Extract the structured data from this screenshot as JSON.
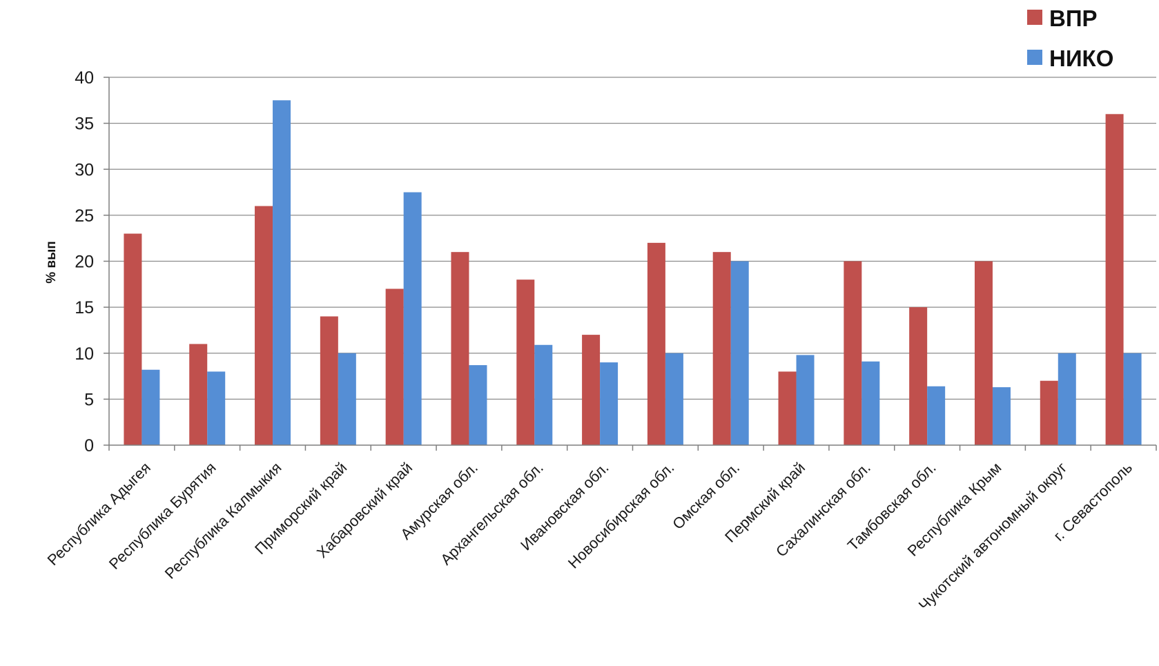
{
  "chart_data": {
    "type": "bar",
    "ylabel": "% вып",
    "xlabel": "",
    "ylim": [
      0,
      40
    ],
    "yticks": [
      0,
      5,
      10,
      15,
      20,
      25,
      30,
      35,
      40
    ],
    "grid": true,
    "legend_position": "top-right",
    "categories": [
      "Республика Адыгея",
      "Республика Бурятия",
      "Республика Калмыкия",
      "Приморский край",
      "Хабаровский край",
      "Амурская обл.",
      "Архангельская обл.",
      "Ивановская обл.",
      "Новосибирская обл.",
      "Омская обл.",
      "Пермский край",
      "Сахалинская обл.",
      "Тамбовская обл.",
      "Республика Крым",
      "Чукотский автономный округ",
      "г. Севастополь"
    ],
    "series": [
      {
        "name": "ВПР",
        "color": "#c0504d",
        "values": [
          23,
          11,
          26,
          14,
          17,
          21,
          18,
          12,
          22,
          21,
          8,
          20,
          15,
          20,
          7,
          36
        ]
      },
      {
        "name": "НИКО",
        "color": "#558ed5",
        "values": [
          8.2,
          8,
          37.5,
          10,
          27.5,
          8.7,
          10.9,
          9,
          10,
          20,
          9.8,
          9.1,
          6.4,
          6.3,
          10,
          10
        ]
      }
    ]
  }
}
